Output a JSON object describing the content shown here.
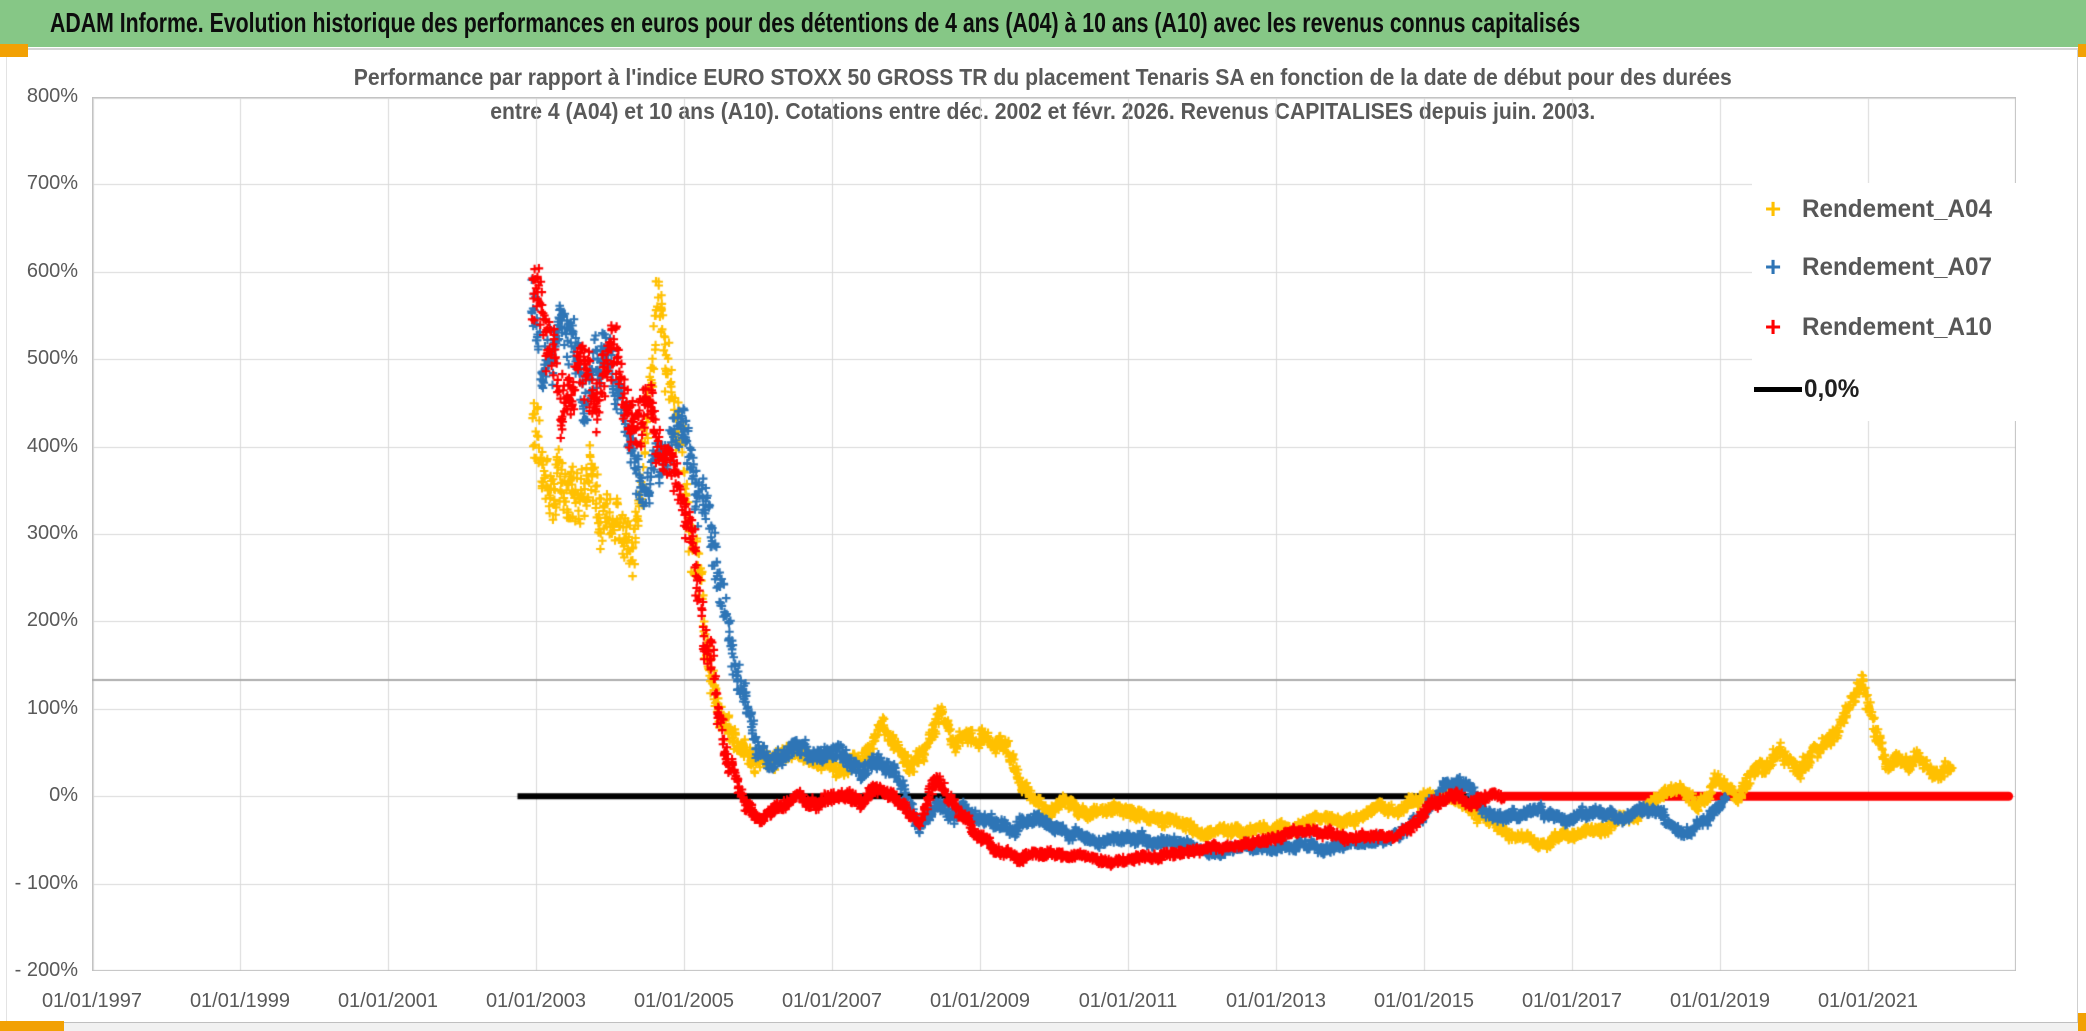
{
  "window": {
    "title": "ADAM Informe. Evolution historique des performances en euros pour des détentions de 4 ans (A04) à 10 ans (A10) avec les revenus connus capitalisés"
  },
  "chart_data": {
    "type": "scatter",
    "title_line1": "Performance par rapport à l'indice EURO STOXX 50 GROSS TR  du placement Tenaris SA en fonction de la date de début pour des durées",
    "title_line2": "entre 4 (A04) et 10 ans (A10). Cotations entre déc. 2002 et févr. 2026. Revenus CAPITALISES depuis juin. 2003.",
    "axes": {
      "xmin": 1997,
      "xmax": 2023,
      "x_step_years": 2,
      "ymin": -200,
      "ymax": 800,
      "y_step_pct": 100,
      "grid": true,
      "grid_color": "#D9D9D9",
      "border_color": "#C0C0C0"
    },
    "x_tick_labels": [
      "01/01/1997",
      "01/01/1999",
      "01/01/2001",
      "01/01/2003",
      "01/01/2005",
      "01/01/2007",
      "01/01/2009",
      "01/01/2011",
      "01/01/2013",
      "01/01/2015",
      "01/01/2017",
      "01/01/2019",
      "01/01/2021"
    ],
    "x_tick_years": [
      1997,
      1999,
      2001,
      2003,
      2005,
      2007,
      2009,
      2011,
      2013,
      2015,
      2017,
      2019,
      2021
    ],
    "y_tick_labels": [
      "800%",
      "700%",
      "600%",
      "500%",
      "400%",
      "300%",
      "200%",
      "100%",
      "0%",
      "- 100%",
      "- 200%"
    ],
    "y_tick_values": [
      800,
      700,
      600,
      500,
      400,
      300,
      200,
      100,
      0,
      -100,
      -200
    ],
    "reference_line": {
      "value_pct": 133,
      "color": "#ABABAB"
    },
    "zero_line": {
      "label": "0,0%",
      "color": "#000000",
      "value_pct": 0,
      "start_year": 2002.75,
      "end_year": 2022.93
    },
    "flat_red_line": {
      "color": "#FF0000",
      "value_pct": 0,
      "start_year": 2016.08,
      "end_year": 2022.9
    },
    "legend": [
      {
        "label": "Rendement_A04",
        "color": "#FFC000",
        "marker": "+"
      },
      {
        "label": "Rendement_A07",
        "color": "#2E75B6",
        "marker": "+"
      },
      {
        "label": "Rendement_A10",
        "color": "#FF0000",
        "marker": "+"
      },
      {
        "label": "0,0%",
        "color": "#000000",
        "marker": "line"
      }
    ],
    "series": [
      {
        "name": "Rendement_A04",
        "color": "#FFC000",
        "start": 2002.95,
        "end": 2022.15,
        "keyframes": [
          [
            2002.95,
            430,
            70
          ],
          [
            2003.2,
            380,
            60
          ],
          [
            2003.5,
            345,
            55
          ],
          [
            2003.75,
            365,
            50
          ],
          [
            2004.0,
            340,
            45
          ],
          [
            2004.3,
            300,
            45
          ],
          [
            2004.5,
            430,
            70
          ],
          [
            2004.65,
            545,
            60
          ],
          [
            2004.8,
            490,
            50
          ],
          [
            2004.95,
            440,
            45
          ],
          [
            2005.1,
            300,
            55
          ],
          [
            2005.3,
            150,
            45
          ],
          [
            2005.5,
            85,
            25
          ],
          [
            2005.75,
            60,
            20
          ],
          [
            2006.0,
            40,
            16
          ],
          [
            2006.3,
            48,
            14
          ],
          [
            2006.6,
            42,
            13
          ],
          [
            2006.9,
            38,
            13
          ],
          [
            2007.2,
            28,
            13
          ],
          [
            2007.5,
            55,
            18
          ],
          [
            2007.65,
            85,
            18
          ],
          [
            2007.85,
            60,
            15
          ],
          [
            2008.1,
            28,
            15
          ],
          [
            2008.35,
            70,
            18
          ],
          [
            2008.5,
            95,
            16
          ],
          [
            2008.7,
            62,
            15
          ],
          [
            2009.0,
            70,
            14
          ],
          [
            2009.35,
            52,
            14
          ],
          [
            2009.6,
            12,
            12
          ],
          [
            2009.9,
            -12,
            10
          ],
          [
            2010.2,
            -6,
            10
          ],
          [
            2010.5,
            -22,
            10
          ],
          [
            2010.9,
            -15,
            10
          ],
          [
            2011.3,
            -25,
            9
          ],
          [
            2011.7,
            -32,
            9
          ],
          [
            2012.1,
            -40,
            8
          ],
          [
            2012.6,
            -42,
            8
          ],
          [
            2013.1,
            -34,
            8
          ],
          [
            2013.6,
            -28,
            8
          ],
          [
            2014.1,
            -24,
            8
          ],
          [
            2014.6,
            -14,
            9
          ],
          [
            2015.0,
            -4,
            10
          ],
          [
            2015.3,
            6,
            10
          ],
          [
            2015.6,
            -14,
            10
          ],
          [
            2015.9,
            -28,
            9
          ],
          [
            2016.2,
            -48,
            8
          ],
          [
            2016.6,
            -56,
            8
          ],
          [
            2017.0,
            -46,
            8
          ],
          [
            2017.4,
            -38,
            8
          ],
          [
            2017.8,
            -22,
            9
          ],
          [
            2018.1,
            -8,
            10
          ],
          [
            2018.4,
            12,
            11
          ],
          [
            2018.7,
            -8,
            11
          ],
          [
            2018.95,
            20,
            11
          ],
          [
            2019.2,
            2,
            11
          ],
          [
            2019.5,
            30,
            13
          ],
          [
            2019.8,
            48,
            13
          ],
          [
            2020.05,
            28,
            14
          ],
          [
            2020.35,
            52,
            14
          ],
          [
            2020.65,
            85,
            16
          ],
          [
            2020.92,
            132,
            16
          ],
          [
            2021.1,
            70,
            18
          ],
          [
            2021.25,
            32,
            13
          ],
          [
            2021.4,
            52,
            13
          ],
          [
            2021.55,
            28,
            13
          ],
          [
            2021.72,
            48,
            11
          ],
          [
            2021.88,
            22,
            11
          ],
          [
            2022.05,
            38,
            9
          ],
          [
            2022.15,
            34,
            8
          ]
        ]
      },
      {
        "name": "Rendement_A07",
        "color": "#2E75B6",
        "start": 2002.95,
        "end": 2019.08,
        "keyframes": [
          [
            2002.95,
            565,
            55
          ],
          [
            2003.15,
            500,
            55
          ],
          [
            2003.4,
            545,
            45
          ],
          [
            2003.65,
            470,
            50
          ],
          [
            2003.95,
            505,
            40
          ],
          [
            2004.2,
            440,
            45
          ],
          [
            2004.45,
            345,
            40
          ],
          [
            2004.7,
            395,
            40
          ],
          [
            2004.95,
            420,
            40
          ],
          [
            2005.15,
            355,
            40
          ],
          [
            2005.35,
            295,
            40
          ],
          [
            2005.55,
            225,
            40
          ],
          [
            2005.75,
            130,
            30
          ],
          [
            2005.95,
            65,
            22
          ],
          [
            2006.2,
            32,
            15
          ],
          [
            2006.5,
            56,
            15
          ],
          [
            2006.8,
            42,
            14
          ],
          [
            2007.1,
            46,
            14
          ],
          [
            2007.4,
            26,
            13
          ],
          [
            2007.7,
            46,
            14
          ],
          [
            2007.95,
            18,
            14
          ],
          [
            2008.15,
            -32,
            12
          ],
          [
            2008.45,
            -2,
            12
          ],
          [
            2008.7,
            -16,
            12
          ],
          [
            2009.0,
            -26,
            11
          ],
          [
            2009.4,
            -36,
            10
          ],
          [
            2009.8,
            -30,
            10
          ],
          [
            2010.2,
            -42,
            9
          ],
          [
            2010.6,
            -50,
            8
          ],
          [
            2011.0,
            -44,
            9
          ],
          [
            2011.4,
            -50,
            8
          ],
          [
            2011.8,
            -56,
            8
          ],
          [
            2012.1,
            -64,
            7
          ],
          [
            2012.5,
            -56,
            8
          ],
          [
            2012.9,
            -62,
            7
          ],
          [
            2013.3,
            -56,
            8
          ],
          [
            2013.7,
            -62,
            7
          ],
          [
            2014.1,
            -52,
            8
          ],
          [
            2014.6,
            -46,
            8
          ],
          [
            2015.0,
            -22,
            10
          ],
          [
            2015.3,
            8,
            11
          ],
          [
            2015.5,
            18,
            11
          ],
          [
            2015.8,
            -10,
            10
          ],
          [
            2016.1,
            -26,
            9
          ],
          [
            2016.5,
            -16,
            9
          ],
          [
            2016.9,
            -26,
            9
          ],
          [
            2017.3,
            -16,
            9
          ],
          [
            2017.6,
            -26,
            9
          ],
          [
            2017.9,
            -12,
            9
          ],
          [
            2018.2,
            -26,
            9
          ],
          [
            2018.5,
            -40,
            9
          ],
          [
            2018.8,
            -28,
            9
          ],
          [
            2019.0,
            -8,
            9
          ],
          [
            2019.08,
            2,
            7
          ]
        ]
      },
      {
        "name": "Rendement_A10",
        "color": "#FF0000",
        "start": 2002.95,
        "end": 2016.08,
        "keyframes": [
          [
            2002.95,
            575,
            65
          ],
          [
            2003.1,
            520,
            55
          ],
          [
            2003.35,
            465,
            50
          ],
          [
            2003.6,
            500,
            50
          ],
          [
            2003.85,
            445,
            50
          ],
          [
            2004.05,
            500,
            55
          ],
          [
            2004.3,
            425,
            45
          ],
          [
            2004.55,
            445,
            40
          ],
          [
            2004.75,
            385,
            35
          ],
          [
            2004.95,
            362,
            32
          ],
          [
            2005.1,
            295,
            45
          ],
          [
            2005.25,
            205,
            45
          ],
          [
            2005.4,
            125,
            32
          ],
          [
            2005.55,
            45,
            22
          ],
          [
            2005.7,
            12,
            15
          ],
          [
            2005.85,
            -20,
            12
          ],
          [
            2006.05,
            -26,
            10
          ],
          [
            2006.3,
            -10,
            10
          ],
          [
            2006.55,
            -2,
            10
          ],
          [
            2006.8,
            -12,
            10
          ],
          [
            2007.1,
            4,
            10
          ],
          [
            2007.4,
            -2,
            10
          ],
          [
            2007.7,
            8,
            10
          ],
          [
            2007.95,
            -14,
            10
          ],
          [
            2008.2,
            -30,
            10
          ],
          [
            2008.42,
            22,
            12
          ],
          [
            2008.6,
            2,
            12
          ],
          [
            2008.9,
            -42,
            9
          ],
          [
            2009.2,
            -60,
            8
          ],
          [
            2009.6,
            -70,
            7
          ],
          [
            2010.0,
            -66,
            7
          ],
          [
            2010.4,
            -72,
            6
          ],
          [
            2010.8,
            -76,
            6
          ],
          [
            2011.2,
            -70,
            7
          ],
          [
            2011.6,
            -66,
            7
          ],
          [
            2012.0,
            -60,
            7
          ],
          [
            2012.4,
            -56,
            7
          ],
          [
            2012.8,
            -50,
            7
          ],
          [
            2013.2,
            -44,
            7
          ],
          [
            2013.6,
            -40,
            7
          ],
          [
            2014.0,
            -50,
            7
          ],
          [
            2014.4,
            -46,
            7
          ],
          [
            2014.8,
            -34,
            8
          ],
          [
            2015.1,
            -12,
            9
          ],
          [
            2015.4,
            -2,
            9
          ],
          [
            2015.7,
            -8,
            9
          ],
          [
            2015.95,
            2,
            7
          ],
          [
            2016.08,
            0,
            6
          ]
        ]
      }
    ]
  }
}
